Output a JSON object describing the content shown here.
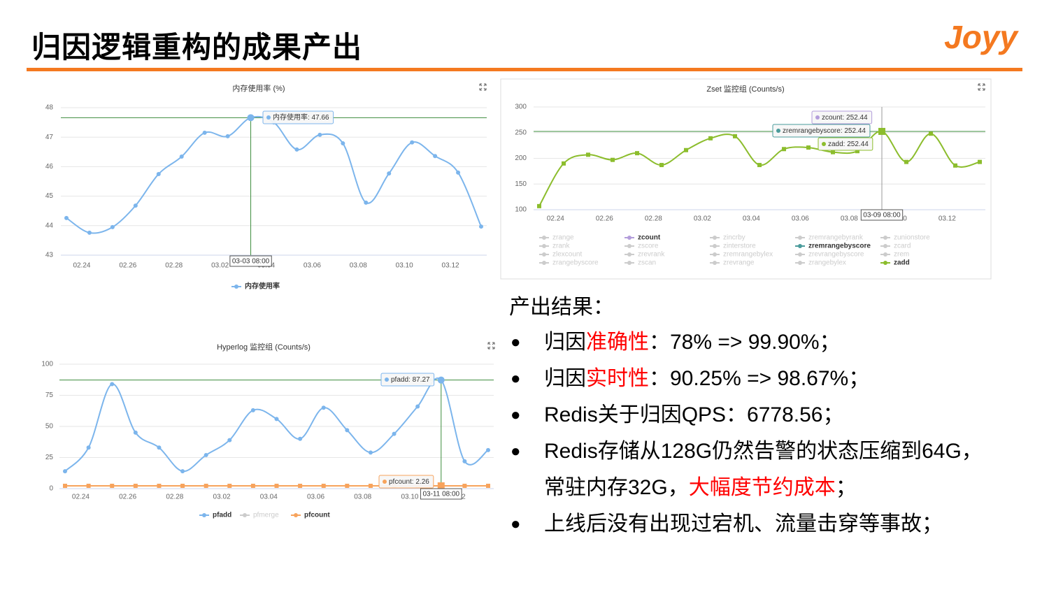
{
  "title": "归因逻辑重构的成果产出",
  "logo": "Joyy",
  "chart_data": [
    {
      "type": "line",
      "title": "内存使用率 (%)",
      "categories": [
        null,
        "02.24",
        null,
        "02.26",
        null,
        "02.28",
        null,
        "03.02",
        null,
        "03.04",
        null,
        "03.06",
        null,
        "03.08",
        null,
        "03.10",
        null,
        "03.12",
        null
      ],
      "series": [
        {
          "name": "内存使用率",
          "color": "#7cb5ec",
          "marker": "circle",
          "values": [
            44.26,
            43.76,
            43.95,
            44.68,
            45.75,
            46.34,
            47.15,
            47.03,
            47.66,
            47.5,
            46.58,
            47.08,
            46.79,
            44.78,
            45.77,
            46.82,
            46.36,
            45.8,
            43.97
          ]
        }
      ],
      "ylim": [
        43,
        48
      ],
      "yticks": [
        43,
        44,
        45,
        46,
        47,
        48
      ],
      "grid": true,
      "crosshair_color": "#3c8c3c",
      "crosshair_v_color": "#3c8c3c",
      "tooltip": {
        "x_label": "03-03 08:00",
        "items": [
          {
            "text": "内存使用率: 47.66",
            "color": "#7cb5ec"
          }
        ]
      },
      "legend": [
        {
          "name": "内存使用率",
          "active": true,
          "color": "#7cb5ec"
        }
      ]
    },
    {
      "type": "line",
      "title": "Zset 监控组 (Counts/s)",
      "categories": [
        null,
        "02.24",
        null,
        "02.26",
        null,
        "02.28",
        null,
        "03.02",
        null,
        "03.04",
        null,
        "03.06",
        null,
        "03.08",
        null,
        "03.10",
        null,
        "03.12",
        null
      ],
      "series": [
        {
          "name": "zadd",
          "color": "#8cbd2d",
          "marker": "square",
          "values": [
            107,
            190,
            207,
            197,
            210,
            187,
            216,
            239,
            243,
            187,
            218,
            221,
            212,
            214,
            252.44,
            193,
            248,
            186,
            193
          ]
        }
      ],
      "ylim": [
        100,
        300
      ],
      "yticks": [
        100,
        150,
        200,
        250,
        300
      ],
      "grid": true,
      "crosshair_color": "#3c8c3c",
      "crosshair_v_color": "#999999",
      "tooltip": {
        "x_label": "03-09 08:00",
        "items": [
          {
            "text": "zcount: 252.44",
            "color": "#b39ddb"
          },
          {
            "text": "zremrangebyscore: 252.44",
            "color": "#4a9b9b"
          },
          {
            "text": "zadd: 252.44",
            "color": "#8cbd2d"
          }
        ]
      },
      "legend": [
        {
          "name": "zrange",
          "active": false,
          "color": "#cccccc"
        },
        {
          "name": "zcount",
          "active": true,
          "color": "#b39ddb"
        },
        {
          "name": "zincrby",
          "active": false,
          "color": "#cccccc"
        },
        {
          "name": "zremrangebyrank",
          "active": false,
          "color": "#cccccc"
        },
        {
          "name": "zunionstore",
          "active": false,
          "color": "#cccccc"
        },
        {
          "name": "zrank",
          "active": false,
          "color": "#cccccc"
        },
        {
          "name": "zscore",
          "active": false,
          "color": "#cccccc"
        },
        {
          "name": "zinterstore",
          "active": false,
          "color": "#cccccc"
        },
        {
          "name": "zremrangebyscore",
          "active": true,
          "color": "#4a9b9b"
        },
        {
          "name": "zcard",
          "active": false,
          "color": "#cccccc"
        },
        {
          "name": "zlexcount",
          "active": false,
          "color": "#cccccc"
        },
        {
          "name": "zrevrank",
          "active": false,
          "color": "#cccccc"
        },
        {
          "name": "zremrangebylex",
          "active": false,
          "color": "#cccccc"
        },
        {
          "name": "zrevrangebyscore",
          "active": false,
          "color": "#cccccc"
        },
        {
          "name": "zrem",
          "active": false,
          "color": "#cccccc"
        },
        {
          "name": "zrangebyscore",
          "active": false,
          "color": "#cccccc"
        },
        {
          "name": "zscan",
          "active": false,
          "color": "#cccccc"
        },
        {
          "name": "zrevrange",
          "active": false,
          "color": "#cccccc"
        },
        {
          "name": "zrangebylex",
          "active": false,
          "color": "#cccccc"
        },
        {
          "name": "zadd",
          "active": true,
          "color": "#8cbd2d"
        }
      ]
    },
    {
      "type": "line",
      "title": "Hyperlog 监控组 (Counts/s)",
      "categories": [
        null,
        "02.24",
        null,
        "02.26",
        null,
        "02.28",
        null,
        "03.02",
        null,
        "03.04",
        null,
        "03.06",
        null,
        "03.08",
        null,
        "03.10",
        null,
        "03.12",
        null
      ],
      "series": [
        {
          "name": "pfadd",
          "color": "#7cb5ec",
          "marker": "circle",
          "values": [
            14,
            33,
            84,
            45,
            33,
            14,
            27,
            39,
            63,
            56,
            40,
            65,
            47,
            29,
            44,
            66,
            87.27,
            22,
            31
          ]
        },
        {
          "name": "pfcount",
          "color": "#f7a35c",
          "marker": "square",
          "values": [
            2.26,
            2.26,
            2.26,
            2.26,
            2.26,
            2.26,
            2.26,
            2.26,
            2.26,
            2.26,
            2.26,
            2.26,
            2.26,
            2.26,
            2.26,
            2.26,
            2.26,
            2.26,
            2.26
          ]
        }
      ],
      "ylim": [
        0,
        100
      ],
      "yticks": [
        0,
        25,
        50,
        75,
        100
      ],
      "grid": true,
      "crosshair_color": "#3c8c3c",
      "crosshair_v_color": "#3c8c3c",
      "tooltip": {
        "x_label": "03-11 08:00",
        "items": [
          {
            "text": "pfadd: 87.27",
            "color": "#7cb5ec"
          },
          {
            "text": "pfcount: 2.26",
            "color": "#f7a35c"
          }
        ]
      },
      "legend": [
        {
          "name": "pfadd",
          "active": true,
          "color": "#7cb5ec"
        },
        {
          "name": "pfmerge",
          "active": false,
          "color": "#cccccc"
        },
        {
          "name": "pfcount",
          "active": true,
          "color": "#f7a35c"
        }
      ]
    }
  ],
  "results": {
    "heading": "产出结果：",
    "items": [
      [
        {
          "text": "归因"
        },
        {
          "text": "准确性",
          "color": "#ff0000"
        },
        {
          "text": "：78% => 99.90%；"
        }
      ],
      [
        {
          "text": "归因"
        },
        {
          "text": "实时性",
          "color": "#ff0000"
        },
        {
          "text": "：90.25% => 98.67%；"
        }
      ],
      [
        {
          "text": "Redis关于归因QPS：6778.56；"
        }
      ],
      [
        {
          "text": "Redis存储从128G仍然告警的状态压缩到64G，常驻内存32G，"
        },
        {
          "text": "大幅度节约成本",
          "color": "#ff0000"
        },
        {
          "text": "；"
        }
      ],
      [
        {
          "text": "上线后没有出现过宕机、流量击穿等事故；"
        }
      ]
    ]
  }
}
